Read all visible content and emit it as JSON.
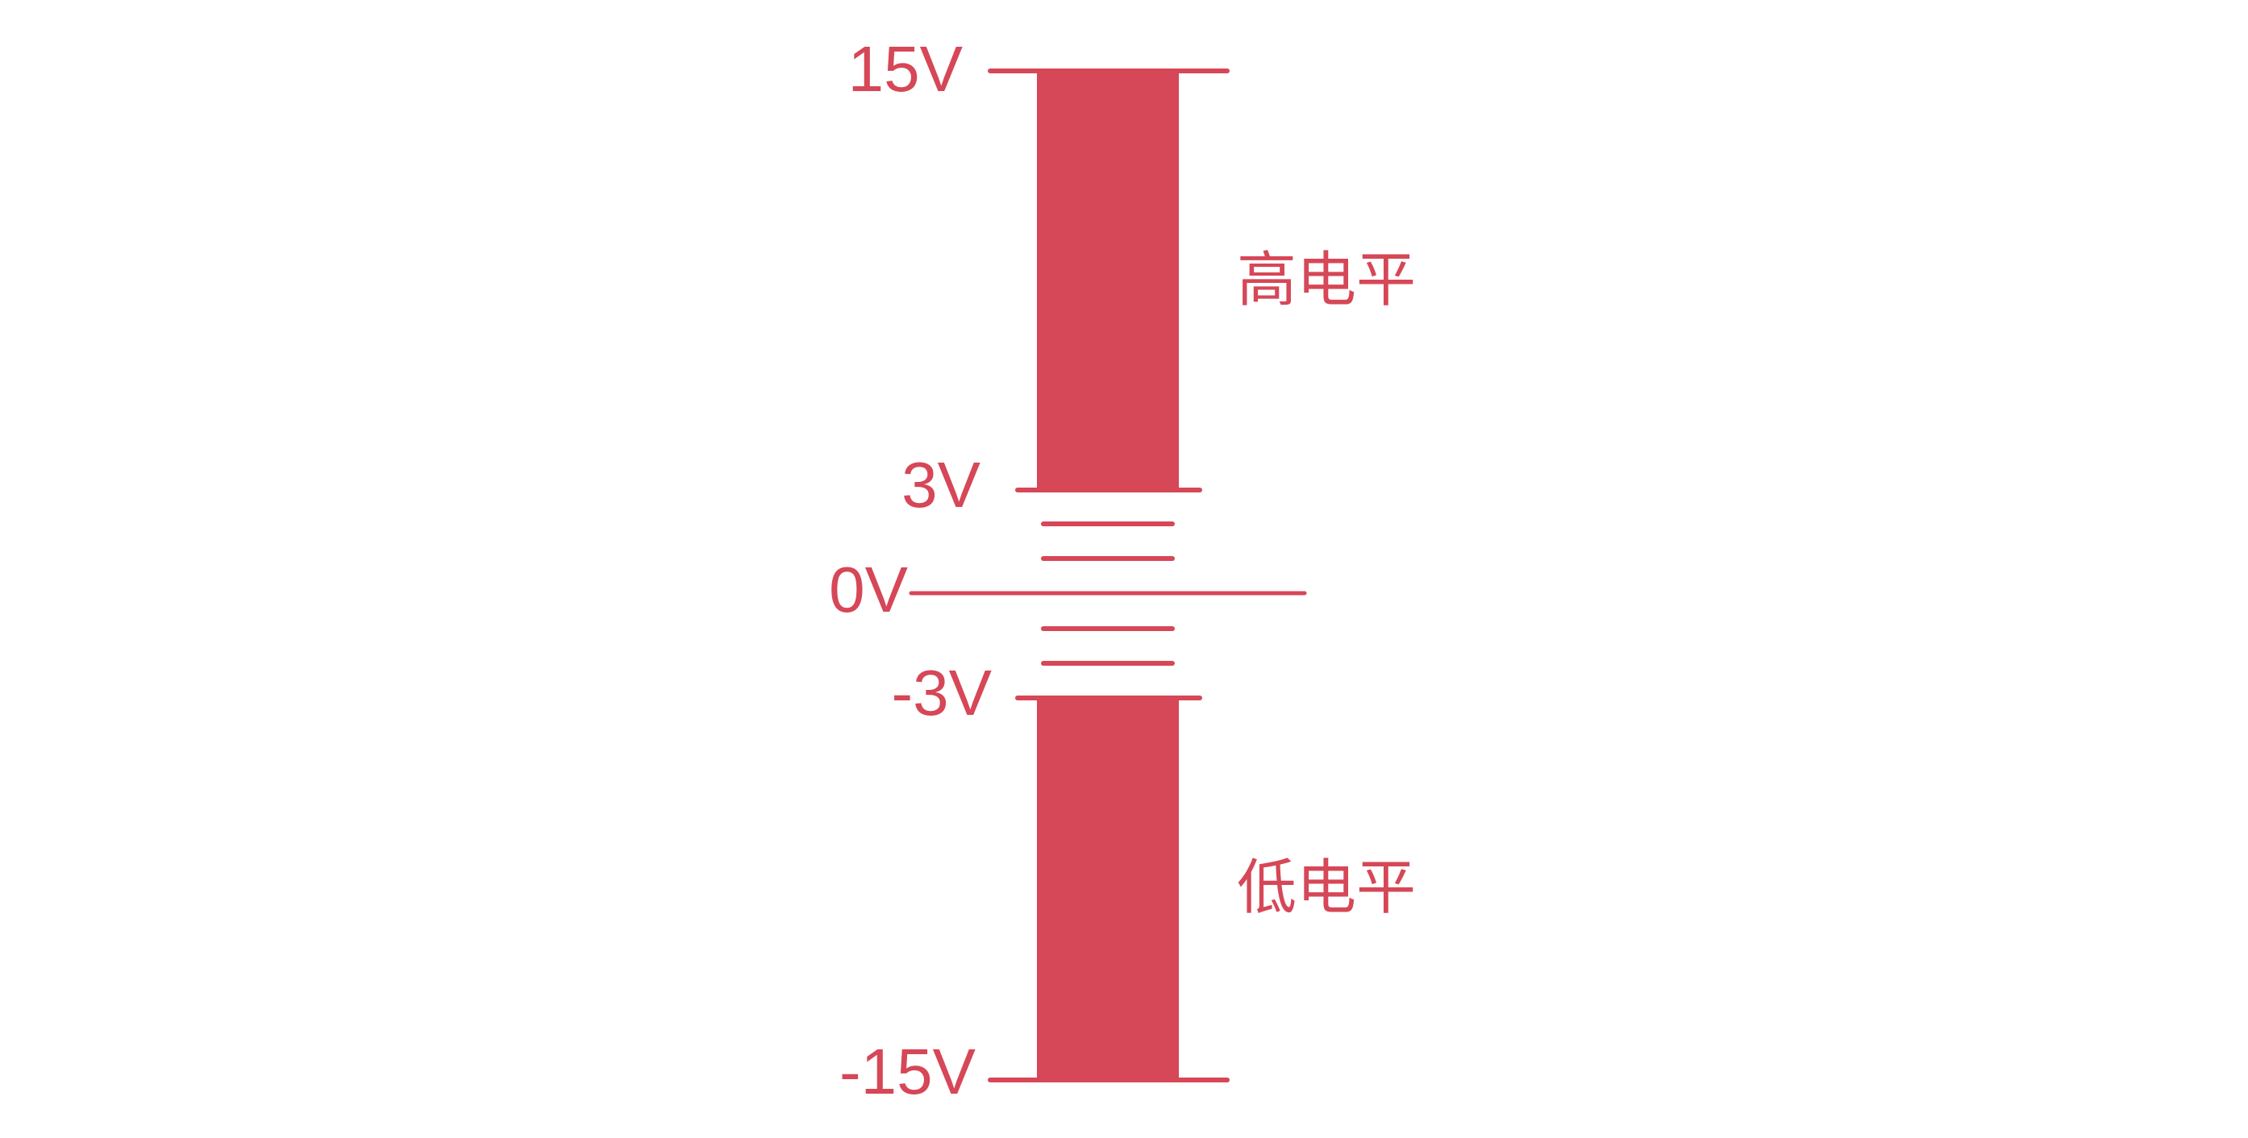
{
  "theme": {
    "accent": "#d64757"
  },
  "levels": {
    "pos15": "15V",
    "pos3": "3V",
    "zero": "0V",
    "neg3": "-3V",
    "neg15": "-15V"
  },
  "zones": {
    "high": "高电平",
    "low": "低电平"
  }
}
